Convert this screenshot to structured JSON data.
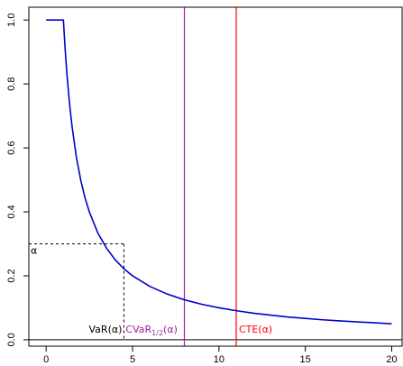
{
  "chart_data": {
    "type": "line",
    "title": "",
    "xlabel": "",
    "ylabel": "",
    "xlim": [
      -1.0,
      20.6
    ],
    "ylim": [
      -0.02,
      1.04
    ],
    "x_ticks": [
      0,
      5,
      10,
      15,
      20
    ],
    "x_tick_labels": [
      "0",
      "5",
      "10",
      "15",
      "20"
    ],
    "y_ticks": [
      0.0,
      0.2,
      0.4,
      0.6,
      0.8,
      1.0
    ],
    "y_tick_labels": [
      "0.0",
      "0.2",
      "0.4",
      "0.6",
      "0.8",
      "1.0"
    ],
    "grid": false,
    "legend": "none",
    "series": [
      {
        "color": "#0000cc",
        "x": [
          0.0,
          1.0,
          1.1,
          1.2,
          1.35,
          1.5,
          1.75,
          2.0,
          2.25,
          2.5,
          3.0,
          3.5,
          4.0,
          4.5,
          5.0,
          6.0,
          7.0,
          8.0,
          9.0,
          10.0,
          11.0,
          12.0,
          13.0,
          14.0,
          15.0,
          16.0,
          17.0,
          18.0,
          19.0,
          20.0
        ],
        "y": [
          1.0,
          1.0,
          0.909,
          0.833,
          0.741,
          0.667,
          0.571,
          0.5,
          0.444,
          0.4,
          0.333,
          0.286,
          0.25,
          0.222,
          0.2,
          0.167,
          0.143,
          0.125,
          0.111,
          0.1,
          0.091,
          0.083,
          0.077,
          0.071,
          0.067,
          0.0625,
          0.059,
          0.056,
          0.053,
          0.05
        ]
      }
    ],
    "horizontal_lines": [
      {
        "y": 0.0,
        "color": "#000000",
        "style": "solid"
      }
    ],
    "vertical_lines": [
      {
        "x": 8.0,
        "color": "#a020a0",
        "label_text": "CVaR",
        "label_subscript": "1/2",
        "label_suffix": "(α)"
      },
      {
        "x": 11.0,
        "color": "#ff0000",
        "label_text": "CTE(α)",
        "label_subscript": "",
        "label_suffix": ""
      }
    ],
    "var_marker": {
      "x": 4.5,
      "y": 0.3,
      "color": "#000000",
      "style": "dashed",
      "x_label": "VaR(α)",
      "y_label": "α"
    }
  }
}
